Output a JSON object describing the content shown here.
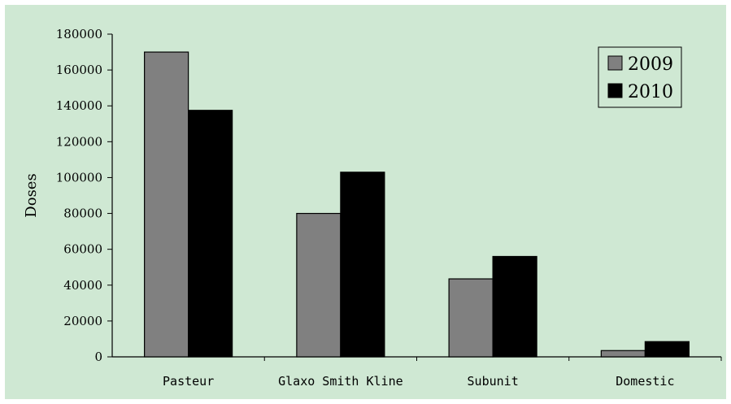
{
  "chart_data": {
    "type": "bar",
    "categories": [
      "Pasteur",
      "Glaxo Smith Kline",
      "Subunit",
      "Domestic"
    ],
    "series": [
      {
        "name": "2009",
        "values": [
          170000,
          80000,
          43500,
          3500
        ],
        "color": "#808080"
      },
      {
        "name": "2010",
        "values": [
          137500,
          103000,
          56000,
          8500
        ],
        "color": "#000000"
      }
    ],
    "title": "",
    "xlabel": "",
    "ylabel": "Doses",
    "ylim": [
      0,
      180000
    ],
    "yticks": [
      0,
      20000,
      40000,
      60000,
      80000,
      100000,
      120000,
      140000,
      160000,
      180000
    ],
    "grid": false,
    "legend_position": "top-right",
    "background_color": "#cfe8d3"
  }
}
